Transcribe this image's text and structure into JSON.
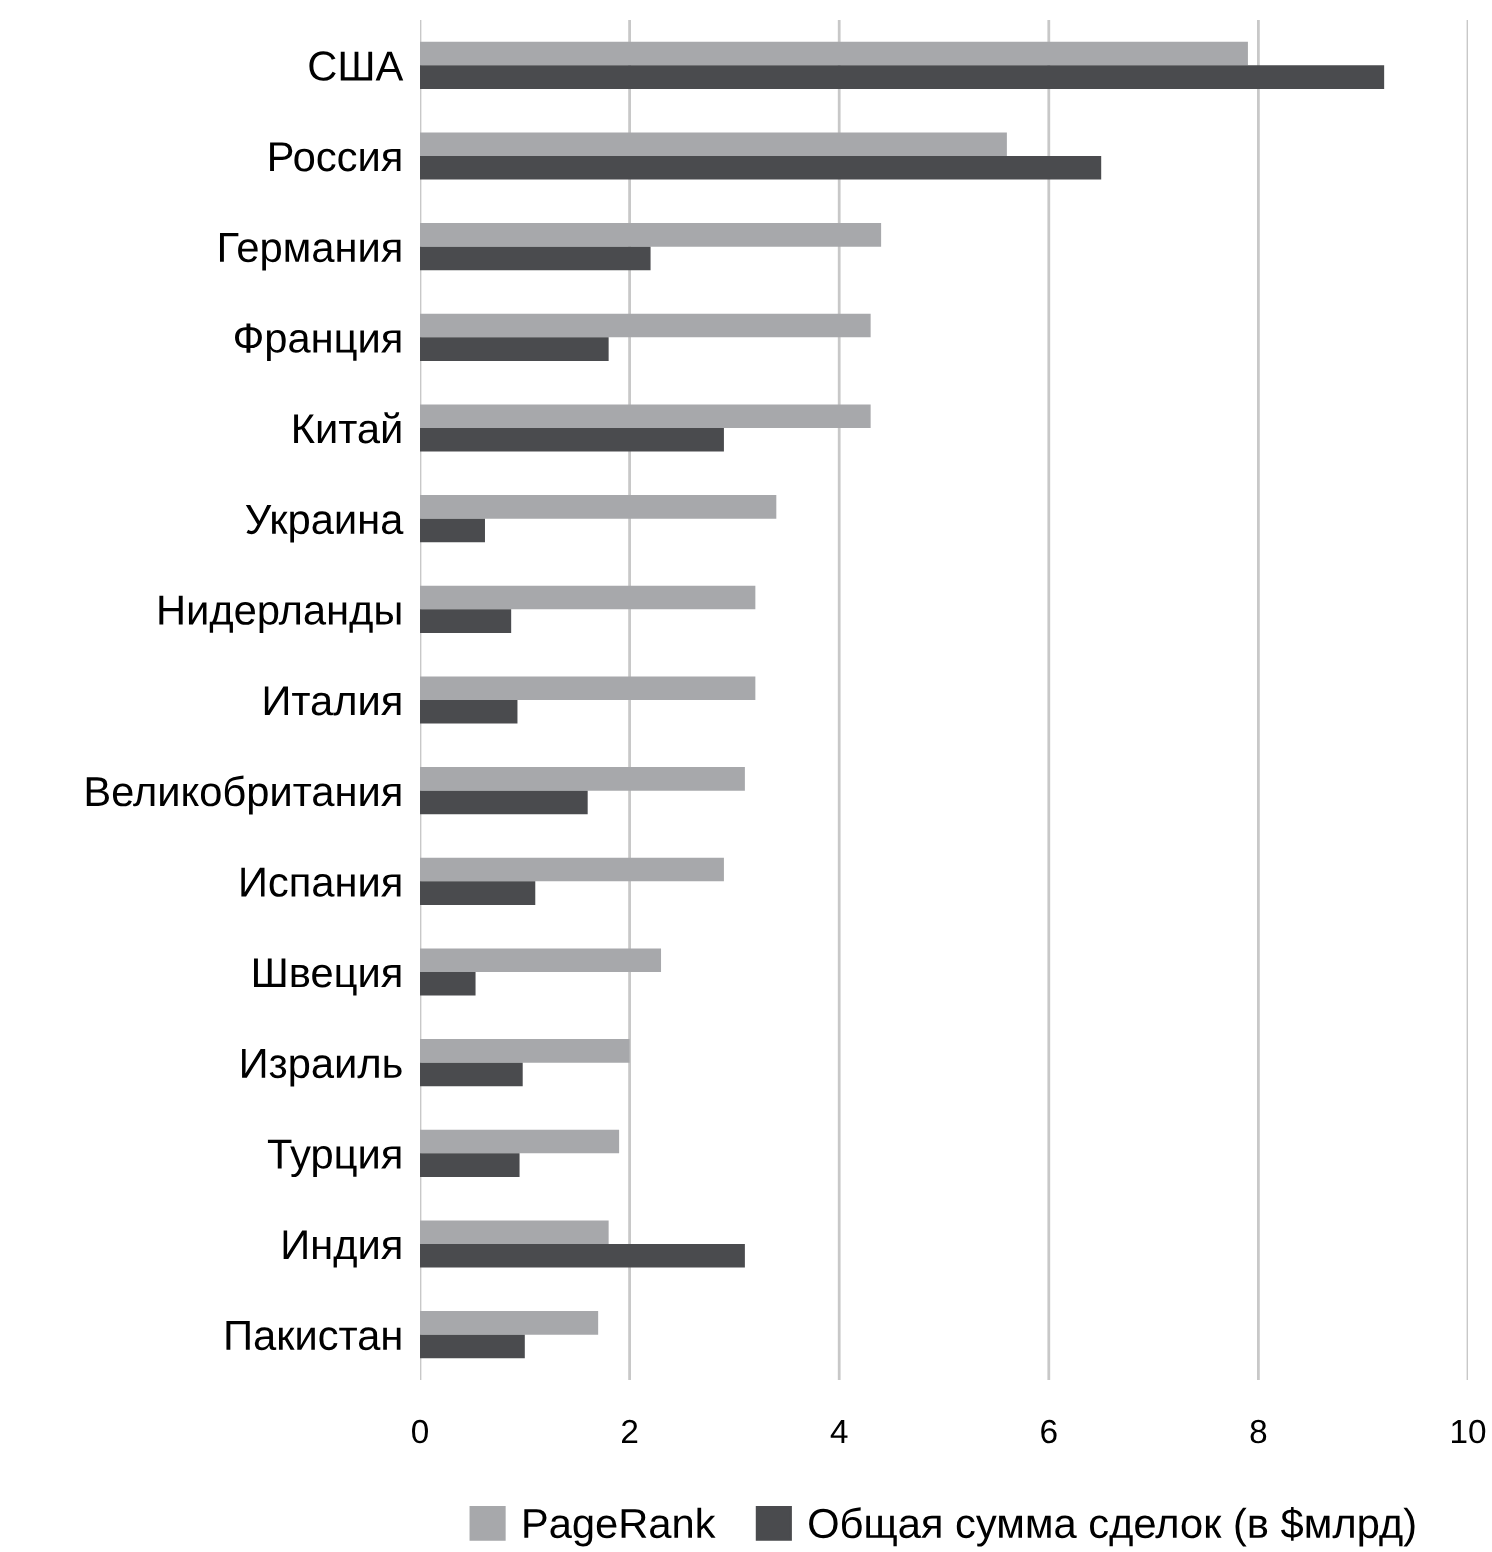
{
  "chart_data": {
    "type": "bar",
    "orientation": "horizontal",
    "categories": [
      "США",
      "Россия",
      "Германия",
      "Франция",
      "Китай",
      "Украина",
      "Нидерланды",
      "Италия",
      "Великобритания",
      "Испания",
      "Швеция",
      "Израиль",
      "Турция",
      "Индия",
      "Пакистан"
    ],
    "series": [
      {
        "name": "PageRank",
        "color": "#a7a8ab",
        "values": [
          7.9,
          5.6,
          4.4,
          4.3,
          4.3,
          3.4,
          3.2,
          3.2,
          3.1,
          2.9,
          2.3,
          2.0,
          1.9,
          1.8,
          1.7
        ]
      },
      {
        "name": "Общая сумма сделок (в $млрд)",
        "color": "#4a4b4e",
        "values": [
          9.2,
          6.5,
          2.2,
          1.8,
          2.9,
          0.62,
          0.87,
          0.93,
          1.6,
          1.1,
          0.53,
          0.98,
          0.95,
          3.1,
          1.0
        ]
      }
    ],
    "xlim": [
      0,
      10
    ],
    "xticks": [
      0,
      2,
      4,
      6,
      8,
      10
    ],
    "grid": "x",
    "legend": "bottom"
  }
}
